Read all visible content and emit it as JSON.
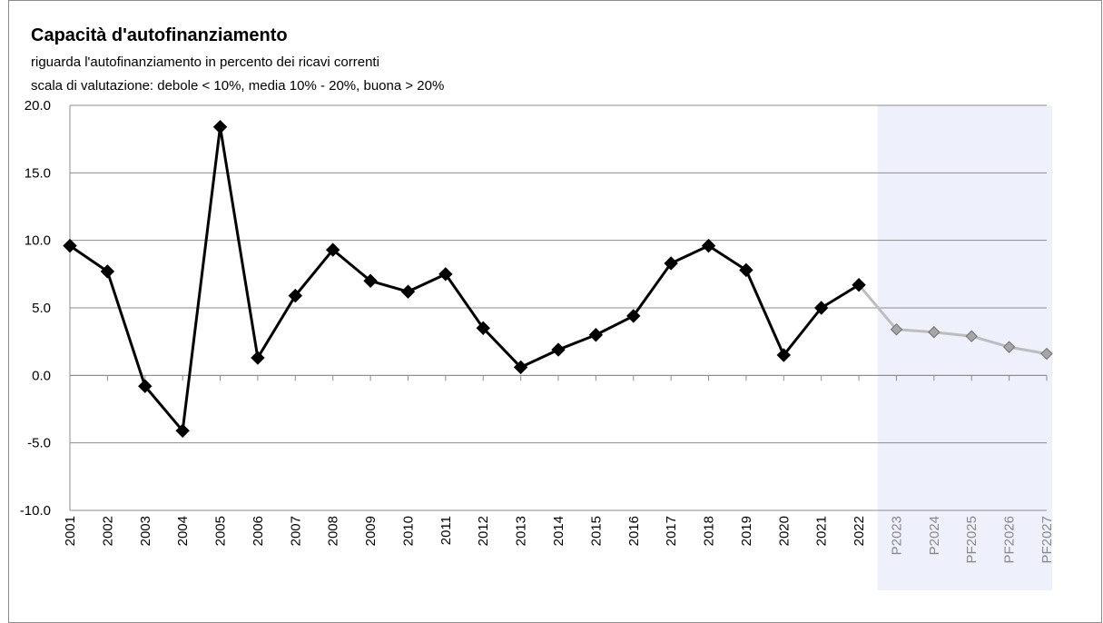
{
  "chart_data": {
    "type": "line",
    "title": "Capacità d'autofinanziamento",
    "subtitle": [
      "riguarda l'autofinanziamento in percento dei ricavi correnti",
      "scala di valutazione: debole < 10%, media 10% - 20%, buona > 20%"
    ],
    "categories": [
      "2001",
      "2002",
      "2003",
      "2004",
      "2005",
      "2006",
      "2007",
      "2008",
      "2009",
      "2010",
      "2011",
      "2012",
      "2013",
      "2014",
      "2015",
      "2016",
      "2017",
      "2018",
      "2019",
      "2020",
      "2021",
      "2022",
      "P2023",
      "P2024",
      "PF2025",
      "PF2026",
      "PF2027"
    ],
    "series": [
      {
        "color": "#000000",
        "forecast_color": "#bdbdbd",
        "values": [
          9.6,
          7.7,
          -0.8,
          -4.1,
          18.4,
          1.3,
          5.9,
          9.3,
          7.0,
          6.2,
          7.5,
          3.5,
          0.6,
          1.9,
          3.0,
          4.4,
          8.3,
          9.6,
          7.8,
          1.5,
          5.0,
          6.7,
          3.4,
          3.2,
          2.9,
          2.1,
          1.6
        ]
      }
    ],
    "ylim": [
      -10,
      20
    ],
    "yticks": [
      {
        "value": -10,
        "label": "-10.0"
      },
      {
        "value": -5,
        "label": "-5.0"
      },
      {
        "value": 0,
        "label": "0.0"
      },
      {
        "value": 5,
        "label": "5.0"
      },
      {
        "value": 10,
        "label": "10.0"
      },
      {
        "value": 15,
        "label": "15.0"
      },
      {
        "value": 20,
        "label": "20.0"
      }
    ],
    "grid": true,
    "forecast_shade": "#eef0fb"
  }
}
